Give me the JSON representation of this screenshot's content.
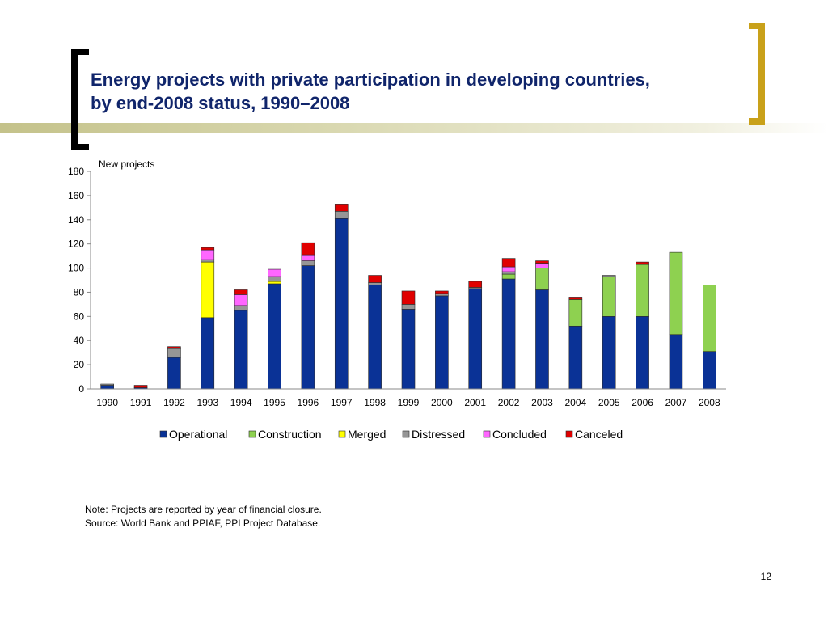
{
  "slide": {
    "title_line1": "Energy projects with private participation in developing countries,",
    "title_line2": "by end-2008 status, 1990–2008",
    "note": "Note: Projects are reported by year of financial closure.",
    "source": "Source: World Bank and PPIAF, PPI Project Database.",
    "page_number": "12",
    "colors": {
      "title": "#10256b",
      "bracket_left": "#000000",
      "bracket_right": "#c9a11a"
    }
  },
  "chart_data": {
    "type": "bar",
    "stacked": true,
    "ylabel": "New projects",
    "ylim": [
      0,
      180
    ],
    "ytick_step": 20,
    "yticks": [
      "0",
      "20",
      "40",
      "60",
      "80",
      "100",
      "120",
      "140",
      "160",
      "180"
    ],
    "grid": false,
    "legend_position": "bottom",
    "categories": [
      "1990",
      "1991",
      "1992",
      "1993",
      "1994",
      "1995",
      "1996",
      "1997",
      "1998",
      "1999",
      "2000",
      "2001",
      "2002",
      "2003",
      "2004",
      "2005",
      "2006",
      "2007",
      "2008"
    ],
    "series": [
      {
        "name": "Operational",
        "color": "#0a3296",
        "values": [
          3,
          1,
          26,
          59,
          65,
          87,
          102,
          141,
          86,
          66,
          77,
          83,
          91,
          82,
          52,
          60,
          60,
          45,
          31
        ]
      },
      {
        "name": "Construction",
        "color": "#8ed150",
        "values": [
          0,
          0,
          0,
          0,
          0,
          0,
          0,
          0,
          0,
          0,
          0,
          0,
          4,
          18,
          22,
          33,
          43,
          68,
          55
        ]
      },
      {
        "name": "Merged",
        "color": "#ffff00",
        "values": [
          0,
          0,
          0,
          46,
          0,
          2,
          0,
          0,
          0,
          0,
          0,
          0,
          0,
          0,
          0,
          0,
          0,
          0,
          0
        ]
      },
      {
        "name": "Distressed",
        "color": "#969696",
        "values": [
          1,
          0,
          8,
          2,
          4,
          4,
          4,
          6,
          2,
          4,
          2,
          1,
          2,
          0,
          0,
          1,
          0,
          0,
          0
        ]
      },
      {
        "name": "Concluded",
        "color": "#ff66ff",
        "values": [
          0,
          0,
          0,
          8,
          9,
          6,
          5,
          0,
          0,
          0,
          0,
          0,
          4,
          4,
          0,
          0,
          0,
          0,
          0
        ]
      },
      {
        "name": "Canceled",
        "color": "#e00000",
        "values": [
          0,
          2,
          1,
          2,
          4,
          0,
          10,
          6,
          6,
          11,
          2,
          5,
          7,
          2,
          2,
          0,
          2,
          0,
          0
        ]
      }
    ]
  }
}
